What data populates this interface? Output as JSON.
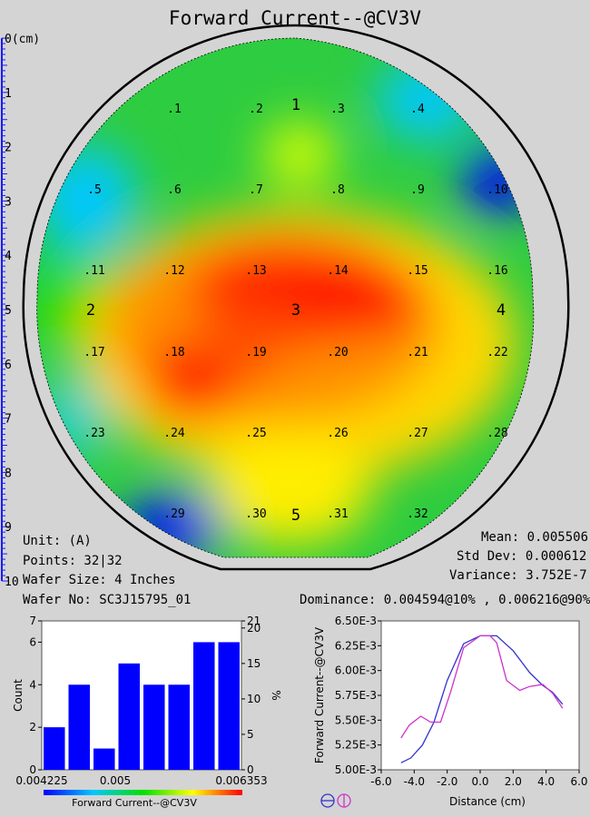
{
  "title": "Forward Current--@CV3V",
  "colors": {
    "bar": "#0000ff",
    "line1": "#3333cc",
    "line2": "#cc33cc",
    "bg": "#d4d4d4"
  },
  "ruler": {
    "unit_label": "0(cm)",
    "ticks": [
      "1",
      "2",
      "3",
      "4",
      "5",
      "6",
      "7",
      "8",
      "9",
      "10"
    ]
  },
  "wafer_points": [
    ".1",
    ".2",
    ".3",
    ".4",
    ".5",
    ".6",
    ".7",
    ".8",
    ".9",
    ".10",
    ".11",
    ".12",
    ".13",
    ".14",
    ".15",
    ".16",
    ".17",
    ".18",
    ".19",
    ".20",
    ".21",
    ".22",
    ".23",
    ".24",
    ".25",
    ".26",
    ".27",
    ".28",
    ".29",
    ".30",
    ".31",
    ".32"
  ],
  "section_labels": [
    "1",
    "2",
    "3",
    "4",
    "5"
  ],
  "info": {
    "unit": "Unit: (A)",
    "points": "Points: 32|32",
    "wafer_size": "Wafer Size: 4 Inches",
    "wafer_no": "Wafer No: SC3J15795_01",
    "mean": "Mean: 0.005506",
    "std_dev": "Std Dev: 0.000612",
    "variance": "Variance: 3.752E-7",
    "dominance": "Dominance: 0.004594@10% , 0.006216@90%"
  },
  "chart_data": [
    {
      "type": "bar",
      "title": "",
      "xlabel": "Forward Current--@CV3V",
      "ylabel": "Count",
      "ylabel_right": "%",
      "x_tick_labels": [
        "0.004225",
        "0.005",
        "0.006353"
      ],
      "values": [
        2,
        4,
        1,
        5,
        4,
        4,
        6,
        6
      ],
      "ylim": [
        0,
        7
      ],
      "y_ticks": [
        "0",
        "2",
        "4",
        "6",
        "7"
      ],
      "y_right_ticks": [
        "0",
        "5",
        "10",
        "15",
        "20",
        "21"
      ],
      "grid": false
    },
    {
      "type": "line",
      "title": "",
      "xlabel": "Distance (cm)",
      "ylabel": "Forward Current--@CV3V",
      "xlim": [
        -6,
        6
      ],
      "ylim": [
        0.005,
        0.0065
      ],
      "x_ticks": [
        "-6.0",
        "-4.0",
        "-2.0",
        "0.0",
        "2.0",
        "4.0",
        "6.0"
      ],
      "y_ticks": [
        "5.00E-3",
        "5.25E-3",
        "5.50E-3",
        "5.75E-3",
        "6.00E-3",
        "6.25E-3",
        "6.50E-3"
      ],
      "series": [
        {
          "x": [
            -4.8,
            -4.2,
            -3.5,
            -2.8,
            -2.0,
            -1.0,
            0.0,
            0.5,
            1.0,
            2.0,
            3.0,
            3.8,
            4.4,
            5.0
          ],
          "y": [
            0.00507,
            0.00512,
            0.00525,
            0.00548,
            0.0059,
            0.00627,
            0.00635,
            0.00635,
            0.00635,
            0.0062,
            0.00598,
            0.00585,
            0.00578,
            0.00566
          ]
        },
        {
          "x": [
            -4.8,
            -4.3,
            -3.6,
            -3.0,
            -2.4,
            -1.8,
            -1.0,
            0.0,
            0.6,
            1.0,
            1.6,
            2.4,
            3.0,
            3.8,
            4.4,
            5.0
          ],
          "y": [
            0.00532,
            0.00545,
            0.00554,
            0.00548,
            0.00548,
            0.00578,
            0.00623,
            0.00635,
            0.00635,
            0.00628,
            0.0059,
            0.0058,
            0.00584,
            0.00586,
            0.00577,
            0.00562
          ]
        }
      ],
      "legend_icons": [
        "wafer-horizontal-icon",
        "wafer-vertical-icon"
      ]
    }
  ]
}
